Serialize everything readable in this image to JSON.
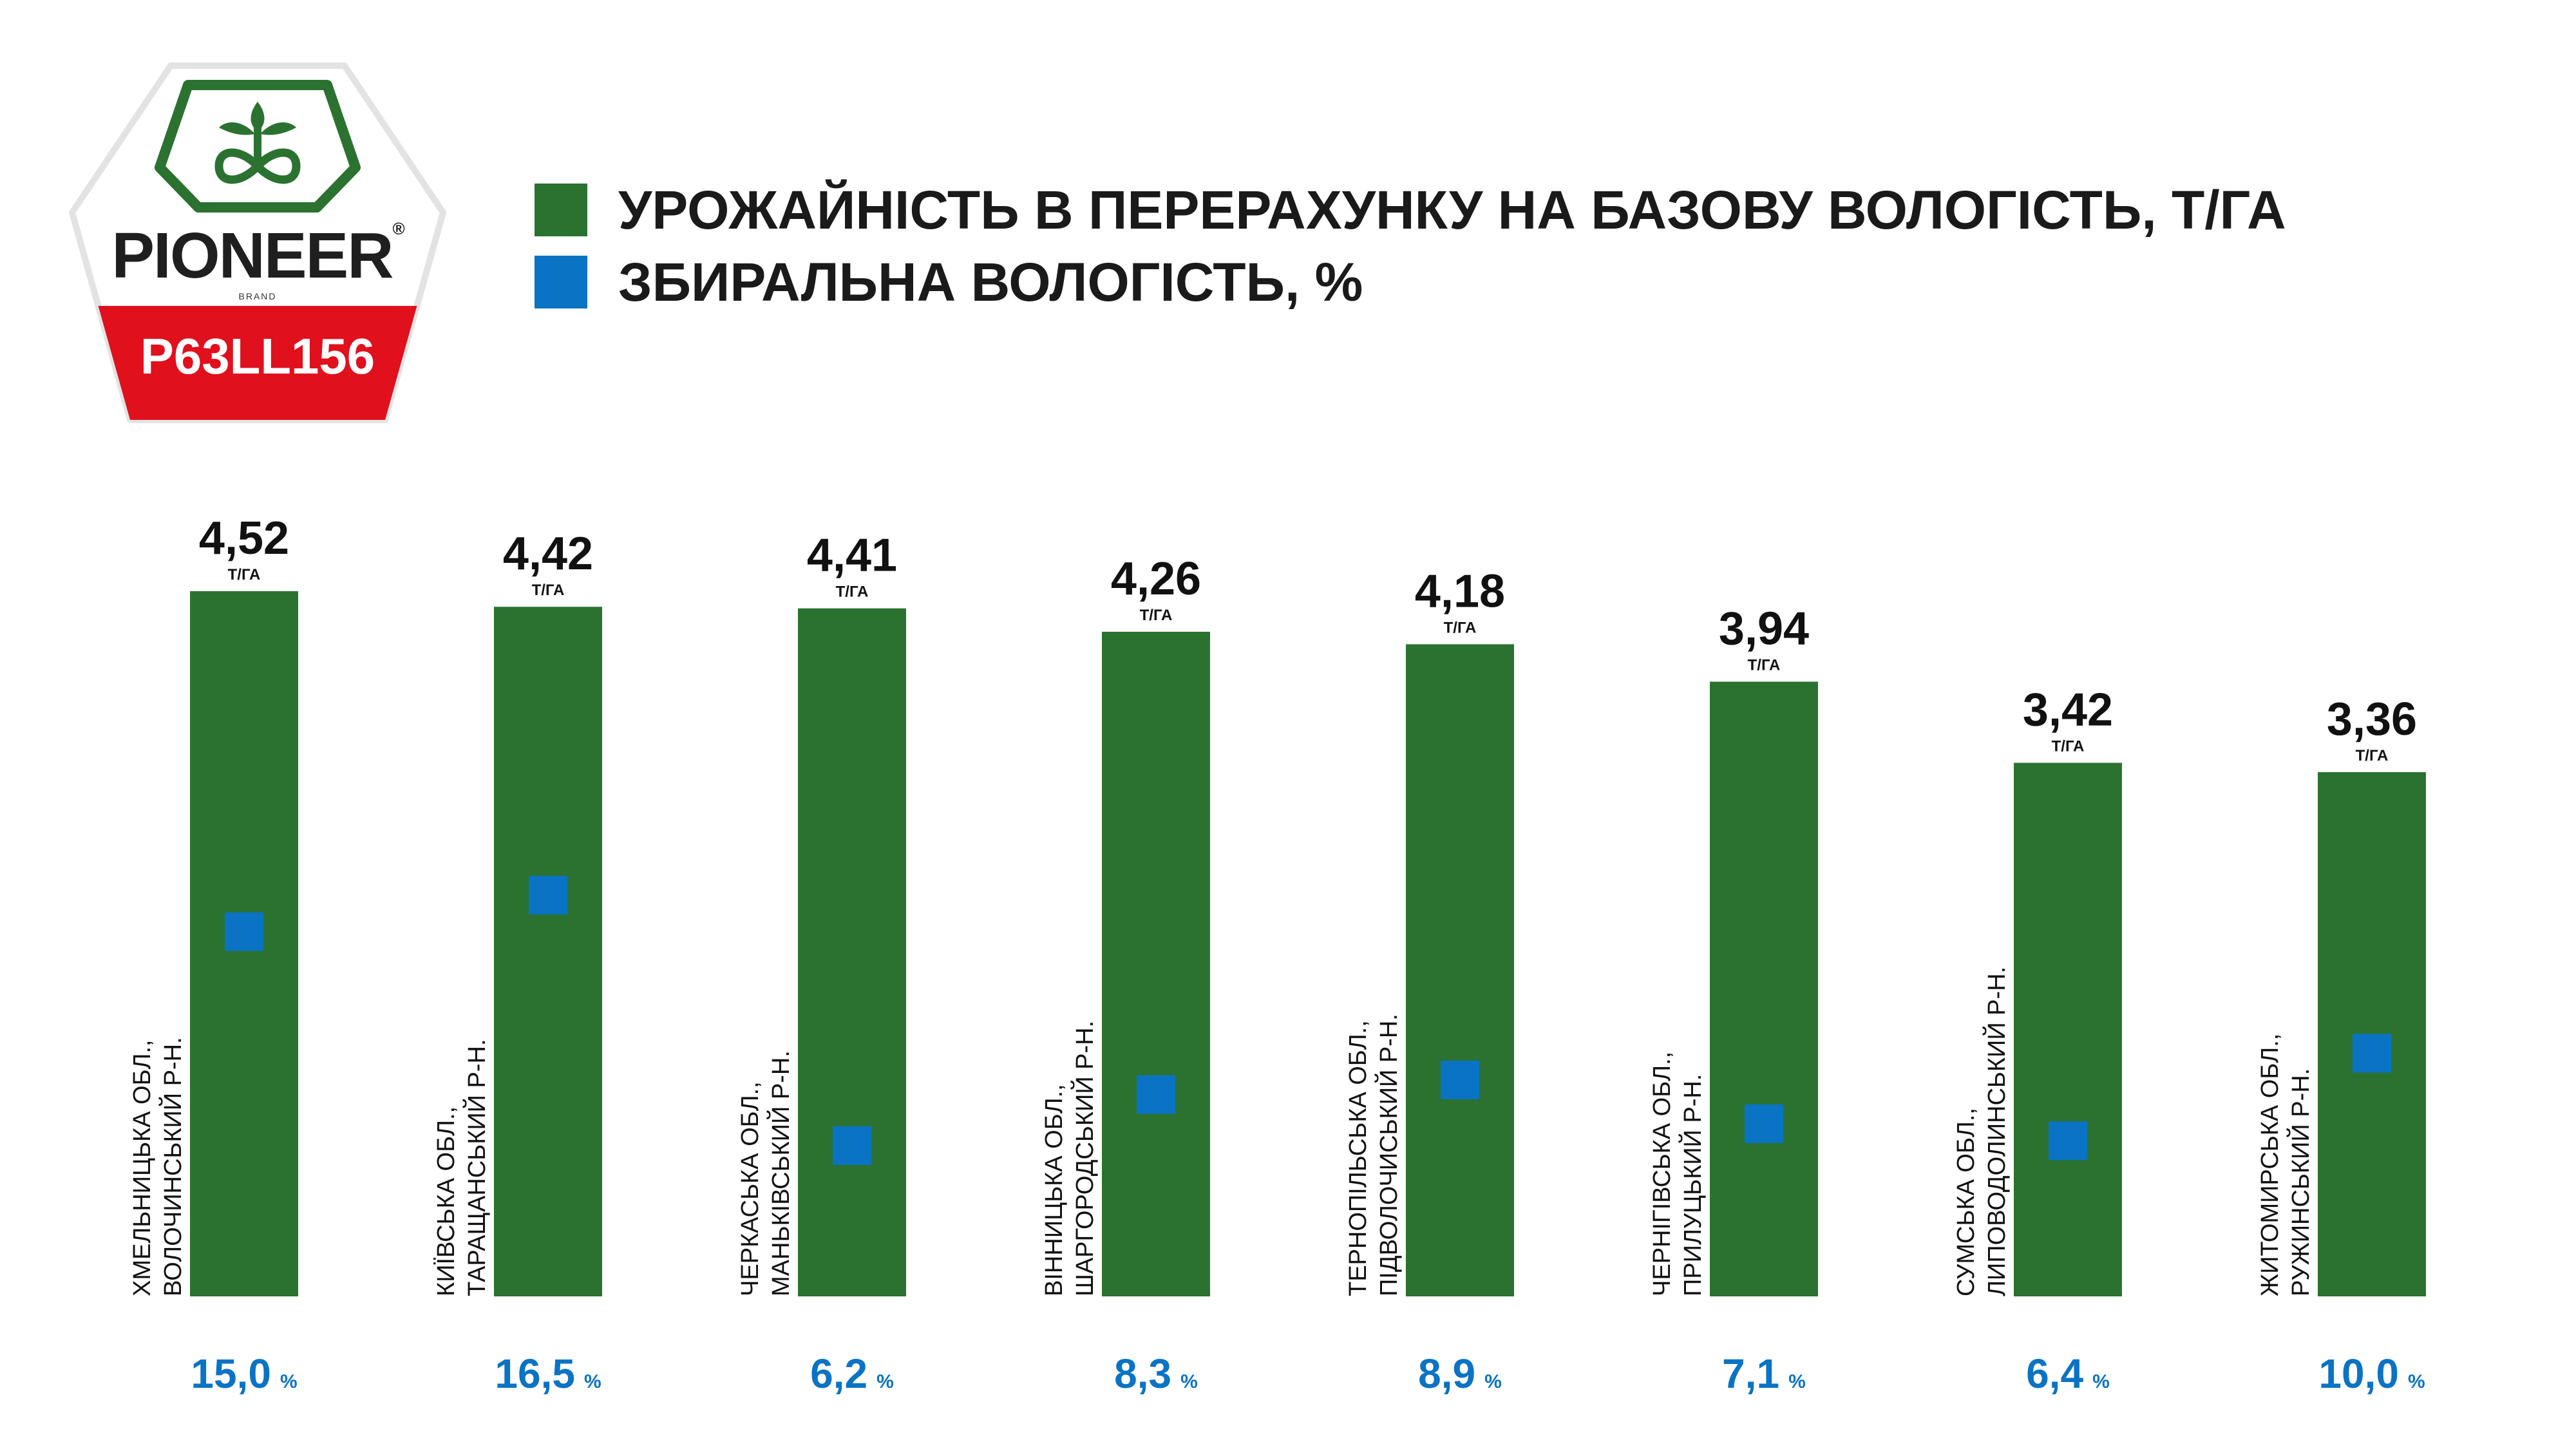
{
  "brand": {
    "name": "PIONEER",
    "registered_mark": "®",
    "sub": "BRAND",
    "product": "P63LL156"
  },
  "colors": {
    "bar": "#2b7231",
    "moisture": "#0a73c4",
    "logo_green": "#2b7231",
    "logo_red": "#e0101d",
    "label_text": "#111111"
  },
  "legend": [
    {
      "label": "УРОЖАЙНІСТЬ В ПЕРЕРАХУНКУ НА БАЗОВУ ВОЛОГІСТЬ, Т/ГА",
      "color": "#2b7231"
    },
    {
      "label": "ЗБИРАЛЬНА ВОЛОГІСТЬ, %",
      "color": "#0a73c4"
    }
  ],
  "chart_data": {
    "type": "bar",
    "title": "",
    "xlabel": "",
    "ylabel": "",
    "ylim": [
      0,
      4.6
    ],
    "moisture_range": [
      0,
      29
    ],
    "yield_unit": "Т/ГА",
    "moisture_unit": "%",
    "categories": [
      [
        "ХМЕЛЬНИЦЬКА ОБЛ.,",
        "ВОЛОЧИНСЬКИЙ Р-Н."
      ],
      [
        "КИЇВСЬКА ОБЛ.,",
        "ТАРАЩАНСЬКИЙ Р-Н."
      ],
      [
        "ЧЕРКАСЬКА ОБЛ.,",
        "МАНЬКІВСЬКИЙ Р-Н."
      ],
      [
        "ВІННИЦЬКА ОБЛ.,",
        "ШАРГОРОДСЬКИЙ Р-Н."
      ],
      [
        "ТЕРНОПІЛЬСЬКА ОБЛ.,",
        "ПІДВОЛОЧИСЬКИЙ Р-Н."
      ],
      [
        "ЧЕРНІГІВСЬКА ОБЛ.,",
        "ПРИЛУЦЬКИЙ Р-Н."
      ],
      [
        "СУМСЬКА ОБЛ.,",
        "ЛИПОВОДОЛИНСЬКИЙ  Р-Н."
      ],
      [
        "ЖИТОМИРСЬКА ОБЛ.,",
        "РУЖИНСЬКИЙ Р-Н."
      ]
    ],
    "series": [
      {
        "name": "УРОЖАЙНІСТЬ В ПЕРЕРАХУНКУ НА БАЗОВУ ВОЛОГІСТЬ, Т/ГА",
        "type": "bar",
        "values": [
          4.52,
          4.42,
          4.41,
          4.26,
          4.18,
          3.94,
          3.42,
          3.36
        ],
        "labels": [
          "4,52",
          "4,42",
          "4,41",
          "4,26",
          "4,18",
          "3,94",
          "3,42",
          "3,36"
        ]
      },
      {
        "name": "ЗБИРАЛЬНА ВОЛОГІСТЬ, %",
        "type": "marker",
        "values": [
          15.0,
          16.5,
          6.2,
          8.3,
          8.9,
          7.1,
          6.4,
          10.0
        ],
        "labels": [
          "15,0",
          "16,5",
          "6,2",
          "8,3",
          "8,9",
          "7,1",
          "6,4",
          "10,0"
        ]
      }
    ]
  }
}
